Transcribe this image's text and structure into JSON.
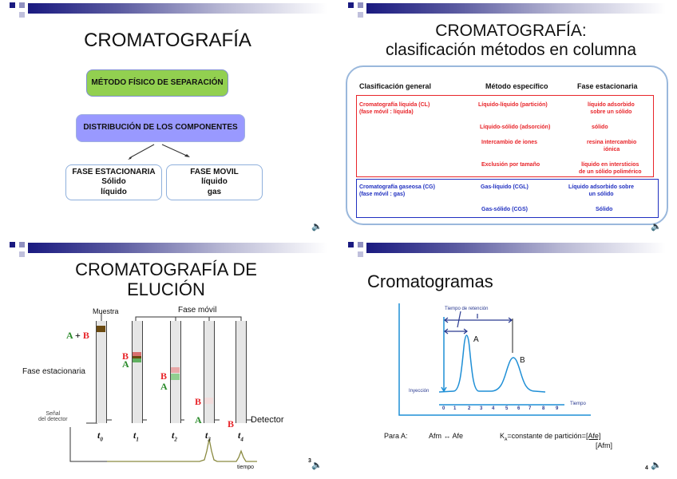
{
  "slide1": {
    "title": "CROMATOGRAFÍA",
    "box_method": "MÉTODO FÍSICO DE SEPARACIÓN",
    "box_distribution": "DISTRIBUCIÓN DE LOS COMPONENTES",
    "stationary": {
      "heading": "FASE ESTACIONARIA",
      "lines": [
        "Sólido",
        "líquido"
      ]
    },
    "mobile": {
      "heading": "FASE MOVIL",
      "lines": [
        "líquido",
        "gas"
      ]
    }
  },
  "slide2": {
    "title_line1": "CROMATOGRAFÍA:",
    "title_line2": "clasificación métodos en columna",
    "headers": [
      "Clasificación general",
      "Método específico",
      "Fase estacionaria"
    ],
    "liquid": {
      "general_line1": "Cromatografía líquida (CL)",
      "general_line2": "(fase móvil : líquida)",
      "rows": [
        {
          "method": "Líquido-líquido (partición)",
          "phase1": "líquido adsorbido",
          "phase2": "sobre un sólido"
        },
        {
          "method": "Líquido-sólido (adsorción)",
          "phase1": "sólido",
          "phase2": ""
        },
        {
          "method": "Intercambio de iones",
          "phase1": "resina intercambio",
          "phase2": "iónica"
        },
        {
          "method": "Exclusión por tamaño",
          "phase1": "líquido en intersticios",
          "phase2": "de un sólido polimérico"
        }
      ]
    },
    "gas": {
      "general_line1": "Cromatografía gaseosa  (CG)",
      "general_line2": "(fase móvil : gas)",
      "rows": [
        {
          "method": "Gas-líquido    (CGL)",
          "phase1": "Líquido adsorbido sobre",
          "phase2": "un sólido"
        },
        {
          "method": "Gas-sólido    (CGS)",
          "phase1": "Sólido",
          "phase2": ""
        }
      ]
    }
  },
  "slide3": {
    "title_line1": "CROMATOGRAFÍA DE",
    "title_line2": "ELUCIÓN",
    "muestra": "Muestra",
    "fase_movil": "Fase móvil",
    "fase_estacionaria": "Fase estacionaria",
    "a": "A",
    "plus": "+",
    "b": "B",
    "detector": "Detector",
    "signal_line1": "Señal",
    "signal_line2": "del detector",
    "times": [
      "t",
      "t",
      "t",
      "t",
      "t"
    ],
    "time_subs": [
      "0",
      "1",
      "2",
      "3",
      "4"
    ],
    "tiempo": "tiempo",
    "page": "3"
  },
  "slide4": {
    "title": "Cromatogramas",
    "retention_label": "Tiempo de retención",
    "peak_a": "A",
    "peak_b": "B",
    "injection": "Inyección",
    "axis_label": "Tiempo",
    "ticks": [
      "0",
      "1",
      "2",
      "3",
      "4",
      "5",
      "6",
      "7",
      "8",
      "9"
    ],
    "para_a": "Para A:",
    "equilibrium": "Afm ↔ Afe",
    "k": "K",
    "k_sub": "A",
    "k_text": "=constante de partición=",
    "numerator": "[Afe]",
    "denominator": "[Afm]",
    "page": "4"
  },
  "colors": {
    "green_box": "#92d050",
    "blue_box": "#9999ff",
    "red": "#e8252a",
    "blue": "#2030c0",
    "chart_blue": "#1f8fd6"
  }
}
